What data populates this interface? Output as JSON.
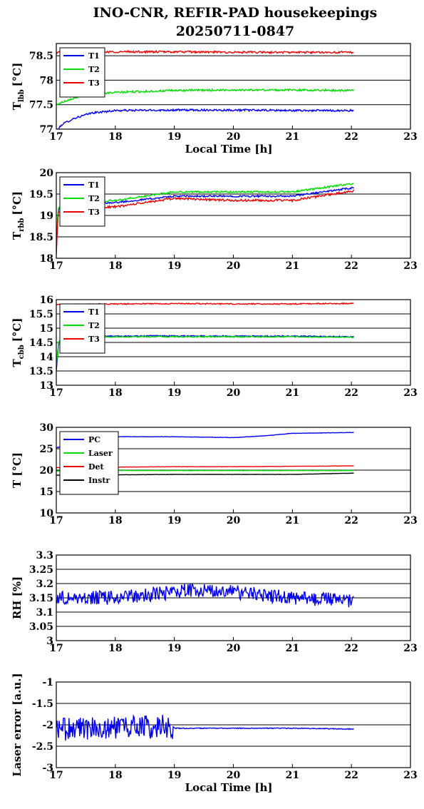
{
  "figure": {
    "title_line1": "INO-CNR, REFIR-PAD housekeepings",
    "title_line2": "20250711-0847"
  },
  "chart_data": [
    {
      "id": "lbb",
      "type": "line",
      "ylabel_main": "T",
      "ylabel_sub": "lbb",
      "ylabel_unit": "[°C]",
      "xlabel": "Local Time [h]",
      "xlim": [
        17,
        23
      ],
      "ylim": [
        77,
        78.75
      ],
      "xticks": [
        17,
        18,
        19,
        20,
        21,
        22,
        23
      ],
      "yticks": [
        77,
        77.5,
        78,
        78.5
      ],
      "ytick_labels": [
        "77",
        "77.5",
        "78",
        "78.5"
      ],
      "grid": true,
      "legend_position": "top-left",
      "x_range": [
        17,
        22.05
      ],
      "series": [
        {
          "name": "T1",
          "color": "#0000ee",
          "shape": [
            [
              17,
              76.95
            ],
            [
              17.1,
              77.1
            ],
            [
              17.3,
              77.22
            ],
            [
              17.6,
              77.33
            ],
            [
              18,
              77.38
            ],
            [
              19,
              77.39
            ],
            [
              20,
              77.39
            ],
            [
              21,
              77.38
            ],
            [
              22.05,
              77.38
            ]
          ],
          "noise": 0.02
        },
        {
          "name": "T2",
          "color": "#00dd00",
          "shape": [
            [
              17,
              77.5
            ],
            [
              17.2,
              77.6
            ],
            [
              17.5,
              77.7
            ],
            [
              18,
              77.75
            ],
            [
              19,
              77.79
            ],
            [
              20,
              77.8
            ],
            [
              21,
              77.8
            ],
            [
              22.05,
              77.79
            ]
          ],
          "noise": 0.02
        },
        {
          "name": "T3",
          "color": "#ee0000",
          "shape": [
            [
              17,
              78.57
            ],
            [
              18,
              78.58
            ],
            [
              19,
              78.58
            ],
            [
              20,
              78.57
            ],
            [
              21,
              78.57
            ],
            [
              22.05,
              78.57
            ]
          ],
          "noise": 0.02
        }
      ]
    },
    {
      "id": "rbb",
      "type": "line",
      "ylabel_main": "T",
      "ylabel_sub": "rbb",
      "ylabel_unit": "[°C]",
      "xlabel": "",
      "xlim": [
        17,
        23
      ],
      "ylim": [
        18,
        20
      ],
      "xticks": [
        17,
        18,
        19,
        20,
        21,
        22,
        23
      ],
      "yticks": [
        18,
        18.5,
        19,
        19.5,
        20
      ],
      "ytick_labels": [
        "18",
        "18.5",
        "19",
        "19.5",
        "20"
      ],
      "grid": true,
      "legend_position": "top-left",
      "x_range": [
        17,
        22.05
      ],
      "series": [
        {
          "name": "T1",
          "color": "#0000ee",
          "shape": [
            [
              17,
              18.2
            ],
            [
              17.03,
              19.1
            ],
            [
              17.1,
              19.3
            ],
            [
              18,
              19.3
            ],
            [
              19,
              19.45
            ],
            [
              20,
              19.45
            ],
            [
              21,
              19.45
            ],
            [
              22.05,
              19.65
            ]
          ],
          "noise": 0.02
        },
        {
          "name": "T2",
          "color": "#00dd00",
          "shape": [
            [
              17,
              18.3
            ],
            [
              17.03,
              19.15
            ],
            [
              17.1,
              19.3
            ],
            [
              18,
              19.35
            ],
            [
              19,
              19.55
            ],
            [
              20,
              19.55
            ],
            [
              21,
              19.55
            ],
            [
              22.05,
              19.75
            ]
          ],
          "noise": 0.02
        },
        {
          "name": "T3",
          "color": "#ee0000",
          "shape": [
            [
              17,
              18.1
            ],
            [
              17.03,
              19.05
            ],
            [
              17.1,
              19.2
            ],
            [
              18,
              19.2
            ],
            [
              19,
              19.4
            ],
            [
              20,
              19.35
            ],
            [
              21,
              19.35
            ],
            [
              22.05,
              19.58
            ]
          ],
          "noise": 0.025
        }
      ]
    },
    {
      "id": "cbb",
      "type": "line",
      "ylabel_main": "T",
      "ylabel_sub": "cbb",
      "ylabel_unit": "[°C]",
      "xlabel": "",
      "xlim": [
        17,
        23
      ],
      "ylim": [
        13,
        16
      ],
      "xticks": [
        17,
        18,
        19,
        20,
        21,
        22,
        23
      ],
      "yticks": [
        13,
        13.5,
        14,
        14.5,
        15,
        15.5,
        16
      ],
      "ytick_labels": [
        "13",
        "13.5",
        "14",
        "14.5",
        "15",
        "15.5",
        "16"
      ],
      "grid": true,
      "legend_position": "top-left",
      "x_range": [
        17,
        22.05
      ],
      "series": [
        {
          "name": "T1",
          "color": "#0000ee",
          "shape": [
            [
              17,
              13.5
            ],
            [
              17.04,
              14.5
            ],
            [
              17.1,
              14.7
            ],
            [
              18,
              14.72
            ],
            [
              19,
              14.73
            ],
            [
              20,
              14.72
            ],
            [
              21,
              14.72
            ],
            [
              22.05,
              14.7
            ]
          ],
          "noise": 0.02
        },
        {
          "name": "T2",
          "color": "#00dd00",
          "shape": [
            [
              17,
              13.7
            ],
            [
              17.04,
              14.55
            ],
            [
              17.1,
              14.68
            ],
            [
              18,
              14.7
            ],
            [
              19,
              14.7
            ],
            [
              20,
              14.7
            ],
            [
              21,
              14.7
            ],
            [
              22.05,
              14.68
            ]
          ],
          "noise": 0.02
        },
        {
          "name": "T3",
          "color": "#ee0000",
          "shape": [
            [
              17,
              15.82
            ],
            [
              18,
              15.85
            ],
            [
              19,
              15.86
            ],
            [
              20,
              15.85
            ],
            [
              21,
              15.85
            ],
            [
              22.05,
              15.87
            ]
          ],
          "noise": 0.02
        }
      ]
    },
    {
      "id": "temp",
      "type": "line",
      "ylabel_main": "T [°C]",
      "ylabel_sub": "",
      "ylabel_unit": "",
      "xlabel": "",
      "xlim": [
        17,
        23
      ],
      "ylim": [
        10,
        30
      ],
      "xticks": [
        17,
        18,
        19,
        20,
        21,
        22,
        23
      ],
      "yticks": [
        10,
        15,
        20,
        25,
        30
      ],
      "ytick_labels": [
        "10",
        "15",
        "20",
        "25",
        "30"
      ],
      "grid": true,
      "legend_position": "top-left",
      "x_range": [
        17,
        22.05
      ],
      "series": [
        {
          "name": "PC",
          "color": "#0000ee",
          "shape": [
            [
              17,
              25.2
            ],
            [
              17.3,
              26.5
            ],
            [
              17.6,
              27.5
            ],
            [
              18,
              27.8
            ],
            [
              19,
              27.8
            ],
            [
              20,
              27.6
            ],
            [
              20.5,
              28.0
            ],
            [
              21,
              28.6
            ],
            [
              22.05,
              28.8
            ]
          ],
          "noise": 0.04
        },
        {
          "name": "Laser",
          "color": "#00dd00",
          "shape": [
            [
              17,
              19.8
            ],
            [
              18,
              19.9
            ],
            [
              19,
              19.9
            ],
            [
              20,
              19.9
            ],
            [
              21,
              19.9
            ],
            [
              22.05,
              19.9
            ]
          ],
          "noise": 0.03
        },
        {
          "name": "Det",
          "color": "#ee0000",
          "shape": [
            [
              17,
              20.6
            ],
            [
              18,
              20.7
            ],
            [
              19,
              20.8
            ],
            [
              20,
              20.8
            ],
            [
              21,
              20.9
            ],
            [
              22.05,
              21.0
            ]
          ],
          "noise": 0.03
        },
        {
          "name": "Instr",
          "color": "#000000",
          "shape": [
            [
              17,
              18.8
            ],
            [
              18,
              18.9
            ],
            [
              19,
              19.0
            ],
            [
              20,
              19.0
            ],
            [
              21,
              19.0
            ],
            [
              22.05,
              19.3
            ]
          ],
          "noise": 0.03
        }
      ]
    },
    {
      "id": "rh",
      "type": "line",
      "ylabel_main": "RH [%]",
      "ylabel_sub": "",
      "ylabel_unit": "",
      "xlabel": "",
      "xlim": [
        17,
        23
      ],
      "ylim": [
        3,
        3.3
      ],
      "xticks": [
        17,
        18,
        19,
        20,
        21,
        22,
        23
      ],
      "yticks": [
        3,
        3.05,
        3.1,
        3.15,
        3.2,
        3.25,
        3.3
      ],
      "ytick_labels": [
        "3",
        "3.05",
        "3.1",
        "3.15",
        "3.2",
        "3.25",
        "3.3"
      ],
      "grid": true,
      "legend_position": "none",
      "x_range": [
        17,
        22.05
      ],
      "series": [
        {
          "name": "",
          "color": "#0000ee",
          "shape": [
            [
              17,
              3.15
            ],
            [
              18,
              3.15
            ],
            [
              19,
              3.17
            ],
            [
              19.5,
              3.18
            ],
            [
              20,
              3.17
            ],
            [
              21,
              3.15
            ],
            [
              22.05,
              3.14
            ]
          ],
          "noise": 0.025
        }
      ]
    },
    {
      "id": "laser",
      "type": "line",
      "ylabel_main": "Laser error [a.u.]",
      "ylabel_sub": "",
      "ylabel_unit": "",
      "xlabel": "Local Time [h]",
      "xlim": [
        17,
        23
      ],
      "ylim": [
        -3,
        -1
      ],
      "xticks": [
        17,
        18,
        19,
        20,
        21,
        22,
        23
      ],
      "yticks": [
        -3,
        -2.5,
        -2,
        -1.5,
        -1
      ],
      "ytick_labels": [
        "-3",
        "-2.5",
        "-2",
        "-1.5",
        "-1"
      ],
      "grid": true,
      "legend_position": "none",
      "x_range": [
        17,
        22.05
      ],
      "series": [
        {
          "name": "",
          "color": "#0000ee",
          "shape": [
            [
              17,
              -2.1
            ],
            [
              18,
              -2.05
            ],
            [
              18.97,
              -2.05
            ],
            [
              19.02,
              -2.08
            ],
            [
              20,
              -2.08
            ],
            [
              21,
              -2.08
            ],
            [
              22.05,
              -2.1
            ]
          ],
          "noise": 0.01,
          "noise_until": 18.97,
          "noise_before": 0.28
        }
      ]
    }
  ]
}
